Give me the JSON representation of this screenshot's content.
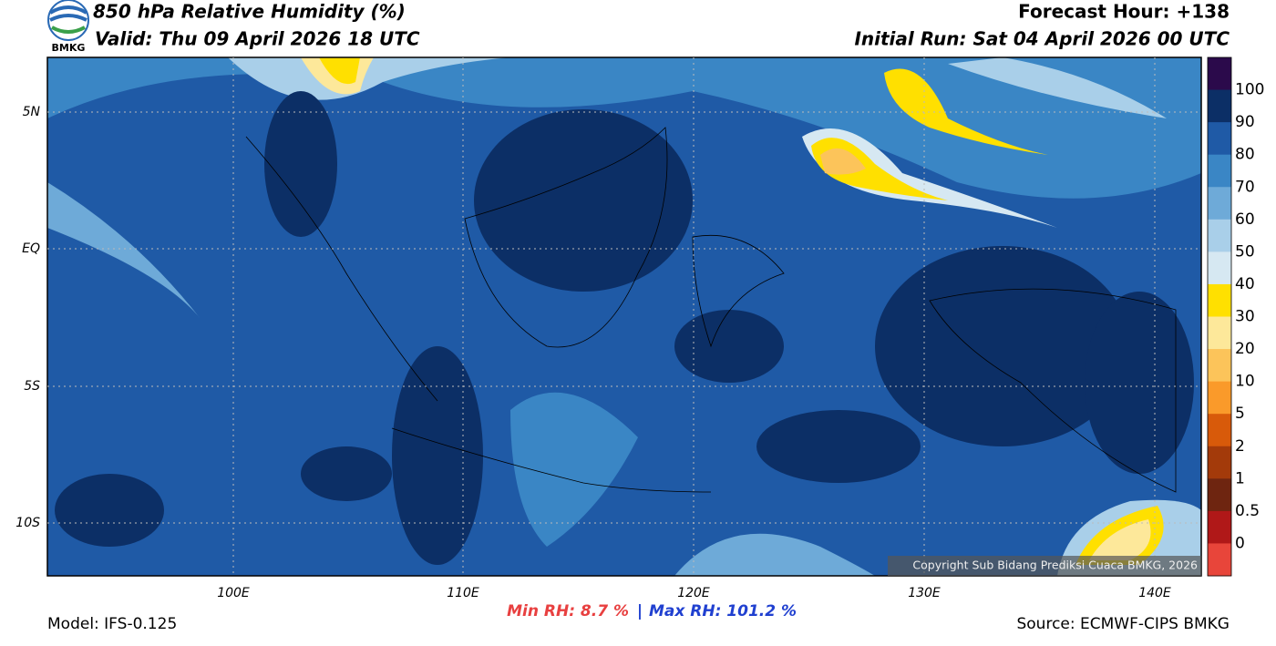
{
  "header": {
    "title": "850 hPa Relative Humidity (%)",
    "valid": "Valid: Thu 09 April 2026 18 UTC",
    "forecast_hour": "Forecast Hour: +138",
    "initial_run": "Initial Run: Sat 04 April 2026 00 UTC",
    "logo_text": "BMKG"
  },
  "map": {
    "lat_labels": [
      "5N",
      "EQ",
      "5S",
      "10S"
    ],
    "lon_labels": [
      "100E",
      "110E",
      "120E",
      "130E",
      "140E"
    ],
    "copyright": "Copyright Sub Bidang Prediksi Cuaca BMKG, 2026"
  },
  "colorbar": {
    "labels": [
      "100",
      "90",
      "80",
      "70",
      "60",
      "50",
      "40",
      "30",
      "20",
      "10",
      "5",
      "2",
      "1",
      "0.5",
      "0"
    ],
    "colors": [
      "#2b0a4b",
      "#0c2f66",
      "#1f5aa6",
      "#3a86c5",
      "#6eaad8",
      "#a9cfe9",
      "#d6e8f2",
      "#f7f7f7",
      "#ffe000",
      "#fde89a",
      "#fcc45a",
      "#fa9a2a",
      "#d85a0a",
      "#a33a0a",
      "#6e2510",
      "#b01818",
      "#e8453a"
    ]
  },
  "footer": {
    "model": "Model: IFS-0.125",
    "min_rh": "Min RH:  8.7 %",
    "separator": "|",
    "max_rh": "Max RH: 101.2 %",
    "source": "Source: ECMWF-CIPS BMKG"
  }
}
